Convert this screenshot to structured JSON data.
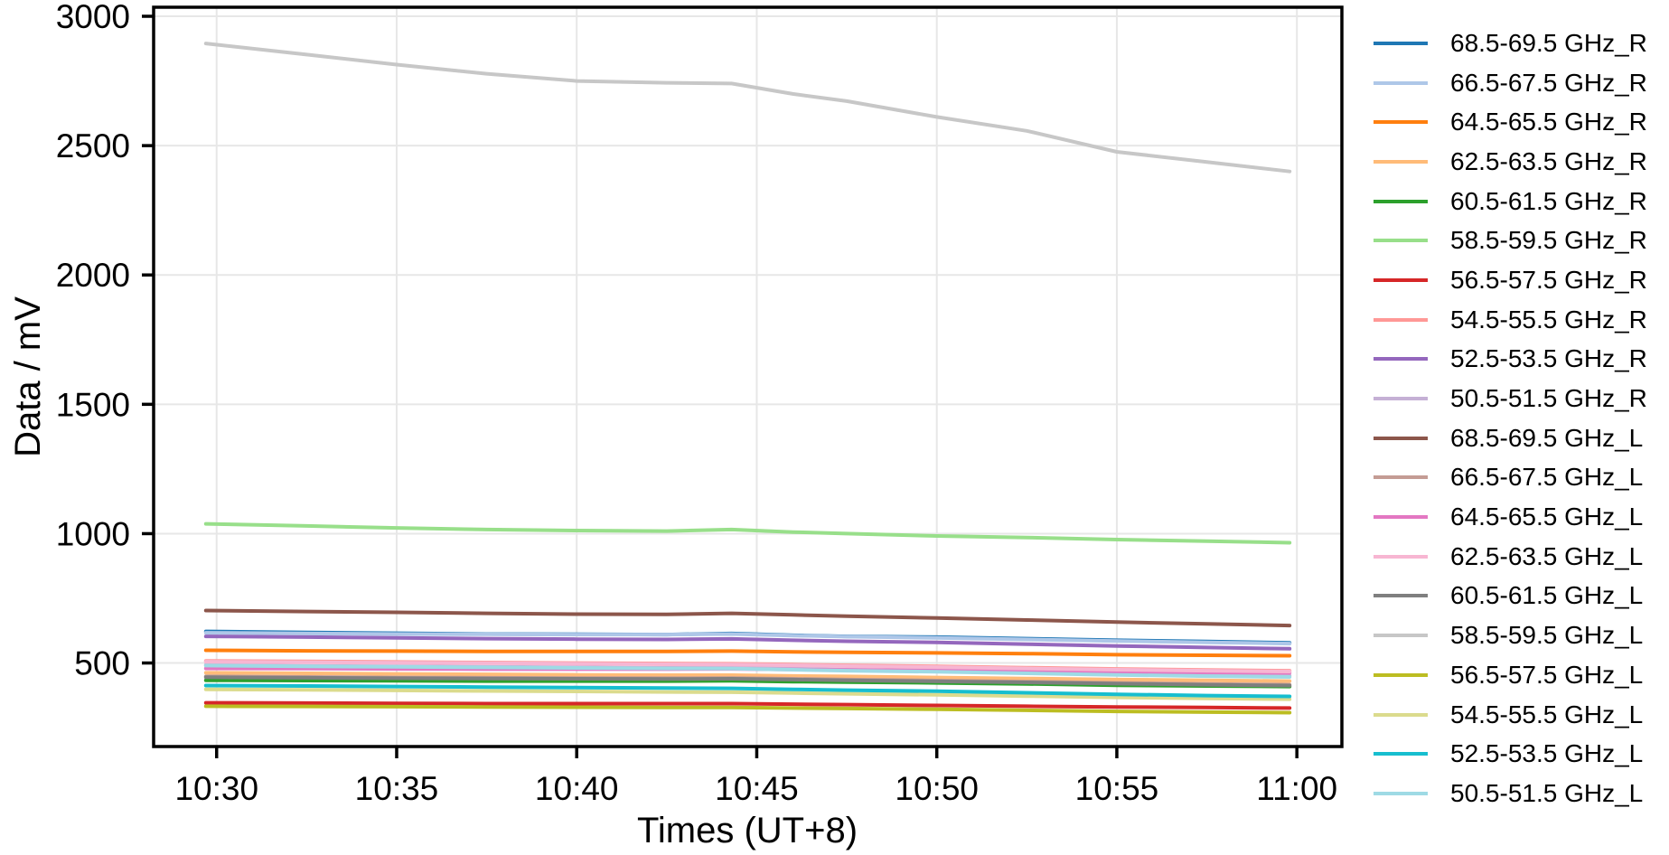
{
  "chart_data": {
    "type": "line",
    "title": "",
    "xlabel": "Times (UT+8)",
    "ylabel": "Data / mV",
    "grid": true,
    "grid_color": "#e7e7e7",
    "spine_color": "#000000",
    "background_color": "#ffffff",
    "legend_position": "right-outside",
    "x_axis": {
      "tick_labels": [
        "10:30",
        "10:35",
        "10:40",
        "10:45",
        "10:50",
        "10:55",
        "11:00"
      ],
      "tick_minutes": [
        30,
        35,
        40,
        45,
        50,
        55,
        60
      ],
      "range_minutes": [
        28.25,
        61.25
      ]
    },
    "y_axis": {
      "ticks": [
        500,
        1000,
        1500,
        2000,
        2500,
        3000
      ],
      "range": [
        177,
        3035
      ]
    },
    "x_minutes": [
      29.7,
      32.5,
      35,
      37.5,
      40,
      42.5,
      44.3,
      46,
      47.5,
      50,
      52.5,
      55,
      57.5,
      59.8
    ],
    "series": [
      {
        "name": "68.5-69.5 GHz_R",
        "color": "#1f77b4",
        "values": [
          622,
          618,
          615,
          612,
          611,
          610,
          614,
          607,
          603,
          600,
          594,
          588,
          583,
          578
        ]
      },
      {
        "name": "66.5-67.5 GHz_R",
        "color": "#aec7e8",
        "values": [
          617,
          614,
          612,
          611,
          610,
          610,
          612,
          606,
          602,
          597,
          591,
          585,
          580,
          575
        ]
      },
      {
        "name": "64.5-65.5 GHz_R",
        "color": "#ff7f0e",
        "values": [
          549,
          547,
          546,
          545,
          545,
          545,
          546,
          543,
          541,
          539,
          536,
          532,
          530,
          528
        ]
      },
      {
        "name": "62.5-63.5 GHz_R",
        "color": "#ffbb78",
        "values": [
          462,
          460,
          458,
          456,
          454,
          453,
          453,
          450,
          448,
          444,
          440,
          436,
          433,
          430
        ]
      },
      {
        "name": "60.5-61.5 GHz_R",
        "color": "#2ca02c",
        "values": [
          433,
          432,
          431,
          430,
          430,
          430,
          431,
          428,
          426,
          423,
          419,
          414,
          411,
          409
        ]
      },
      {
        "name": "58.5-59.5 GHz_R",
        "color": "#98df8a",
        "values": [
          1038,
          1030,
          1022,
          1016,
          1012,
          1010,
          1016,
          1006,
          1000,
          991,
          985,
          977,
          971,
          965
        ]
      },
      {
        "name": "56.5-57.5 GHz_R",
        "color": "#d62728",
        "values": [
          346,
          345,
          344,
          343,
          343,
          343,
          343,
          341,
          339,
          336,
          333,
          330,
          328,
          326
        ]
      },
      {
        "name": "54.5-55.5 GHz_R",
        "color": "#ff9896",
        "values": [
          508,
          506,
          504,
          502,
          500,
          498,
          497,
          494,
          491,
          487,
          482,
          477,
          473,
          470
        ]
      },
      {
        "name": "52.5-53.5 GHz_R",
        "color": "#9467bd",
        "values": [
          603,
          600,
          597,
          594,
          592,
          591,
          593,
          588,
          584,
          580,
          573,
          566,
          560,
          555
        ]
      },
      {
        "name": "50.5-51.5 GHz_R",
        "color": "#c5b0d5",
        "values": [
          492,
          489,
          487,
          485,
          483,
          481,
          481,
          478,
          474,
          470,
          465,
          459,
          455,
          451
        ]
      },
      {
        "name": "68.5-69.5 GHz_L",
        "color": "#8c564b",
        "values": [
          703,
          699,
          696,
          692,
          689,
          688,
          692,
          686,
          681,
          674,
          666,
          658,
          651,
          645
        ]
      },
      {
        "name": "66.5-67.5 GHz_L",
        "color": "#c49c94",
        "values": [
          448,
          446,
          444,
          443,
          442,
          441,
          442,
          439,
          436,
          432,
          428,
          423,
          419,
          416
        ]
      },
      {
        "name": "64.5-65.5 GHz_L",
        "color": "#e377c2",
        "values": [
          479,
          478,
          477,
          476,
          476,
          476,
          477,
          475,
          473,
          471,
          468,
          466,
          464,
          462
        ]
      },
      {
        "name": "62.5-63.5 GHz_L",
        "color": "#f7b6d2",
        "values": [
          505,
          503,
          501,
          499,
          497,
          495,
          494,
          491,
          488,
          484,
          479,
          474,
          470,
          467
        ]
      },
      {
        "name": "60.5-61.5 GHz_L",
        "color": "#7f7f7f",
        "values": [
          445,
          443,
          441,
          440,
          439,
          438,
          439,
          436,
          433,
          429,
          425,
          420,
          416,
          413
        ]
      },
      {
        "name": "58.5-59.5 GHz_L",
        "color": "#c7c7c7",
        "values": [
          2895,
          2852,
          2813,
          2778,
          2750,
          2743,
          2740,
          2700,
          2672,
          2611,
          2557,
          2476,
          2437,
          2400
        ]
      },
      {
        "name": "56.5-57.5 GHz_L",
        "color": "#bcbd22",
        "values": [
          333,
          332,
          331,
          330,
          329,
          328,
          328,
          326,
          324,
          321,
          317,
          313,
          310,
          308
        ]
      },
      {
        "name": "54.5-55.5 GHz_L",
        "color": "#dbdb8d",
        "values": [
          398,
          396,
          394,
          392,
          390,
          388,
          387,
          384,
          381,
          377,
          372,
          367,
          363,
          360
        ]
      },
      {
        "name": "52.5-53.5 GHz_L",
        "color": "#17becf",
        "values": [
          413,
          411,
          409,
          407,
          405,
          403,
          402,
          398,
          395,
          391,
          385,
          379,
          374,
          371
        ]
      },
      {
        "name": "50.5-51.5 GHz_L",
        "color": "#9edae5",
        "values": [
          490,
          487,
          485,
          483,
          481,
          479,
          478,
          474,
          470,
          466,
          460,
          454,
          449,
          446
        ]
      }
    ]
  }
}
